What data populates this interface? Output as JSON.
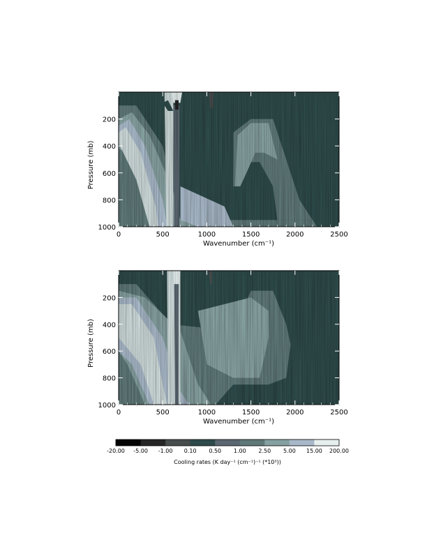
{
  "palette": {
    "c0": "#050505",
    "c1": "#262626",
    "c2": "#474c4c",
    "c3": "#2e4a4a",
    "c4": "#5a6670",
    "c5": "#5f7878",
    "c6": "#86a0a0",
    "c7": "#a8b8c8",
    "c8": "#cdd9d9",
    "c9": "#e6eeee"
  },
  "chart_data": [
    {
      "type": "heatmap",
      "title": "",
      "xlabel": "Wavenumber (cm⁻¹)",
      "ylabel": "Pressure (mb)",
      "xlim": [
        0,
        2500
      ],
      "ylim": [
        1000,
        0
      ],
      "xticks": [
        0,
        500,
        1000,
        1500,
        2000,
        2500
      ],
      "yticks": [
        200,
        400,
        600,
        800,
        1000
      ],
      "background_level": 3,
      "regions": [
        {
          "level": 5,
          "pts": [
            [
              0,
              100
            ],
            [
              200,
              100
            ],
            [
              500,
              400
            ],
            [
              700,
              950
            ],
            [
              2200,
              950
            ],
            [
              2250,
              1000
            ],
            [
              0,
              1000
            ]
          ]
        },
        {
          "level": 5,
          "pts": [
            [
              1300,
              300
            ],
            [
              1500,
              200
            ],
            [
              1750,
              200
            ],
            [
              1900,
              500
            ],
            [
              2050,
              800
            ],
            [
              2200,
              950
            ],
            [
              1800,
              950
            ],
            [
              1750,
              700
            ],
            [
              1600,
              520
            ],
            [
              1500,
              520
            ],
            [
              1350,
              700
            ],
            [
              1300,
              700
            ]
          ]
        },
        {
          "level": 6,
          "pts": [
            [
              1350,
              320
            ],
            [
              1500,
              230
            ],
            [
              1700,
              230
            ],
            [
              1800,
              500
            ],
            [
              1650,
              450
            ],
            [
              1550,
              450
            ],
            [
              1450,
              600
            ],
            [
              1380,
              700
            ],
            [
              1320,
              700
            ]
          ]
        },
        {
          "level": 6,
          "pts": [
            [
              0,
              200
            ],
            [
              150,
              150
            ],
            [
              350,
              320
            ],
            [
              600,
              700
            ],
            [
              700,
              950
            ],
            [
              1250,
              950
            ],
            [
              1250,
              1000
            ],
            [
              500,
              1000
            ],
            [
              300,
              700
            ],
            [
              100,
              450
            ],
            [
              0,
              420
            ]
          ]
        },
        {
          "level": 7,
          "pts": [
            [
              0,
              250
            ],
            [
              120,
              200
            ],
            [
              300,
              400
            ],
            [
              500,
              800
            ],
            [
              550,
              1000
            ],
            [
              400,
              1000
            ],
            [
              250,
              650
            ],
            [
              80,
              400
            ],
            [
              0,
              350
            ]
          ]
        },
        {
          "level": 7,
          "pts": [
            [
              700,
              700
            ],
            [
              1200,
              850
            ],
            [
              1300,
              1000
            ],
            [
              900,
              1000
            ],
            [
              700,
              950
            ]
          ]
        },
        {
          "level": 8,
          "pts": [
            [
              0,
              300
            ],
            [
              80,
              260
            ],
            [
              250,
              450
            ],
            [
              420,
              850
            ],
            [
              450,
              1000
            ],
            [
              350,
              1000
            ],
            [
              200,
              650
            ],
            [
              0,
              380
            ]
          ]
        },
        {
          "level": 8,
          "pts": [
            [
              520,
              0
            ],
            [
              620,
              0
            ],
            [
              620,
              1000
            ],
            [
              540,
              1000
            ]
          ]
        },
        {
          "level": 9,
          "pts": [
            [
              600,
              0
            ],
            [
              720,
              0
            ],
            [
              700,
              80
            ],
            [
              620,
              80
            ]
          ]
        },
        {
          "level": 4,
          "pts": [
            [
              620,
              100
            ],
            [
              690,
              100
            ],
            [
              690,
              1000
            ],
            [
              630,
              1000
            ]
          ]
        },
        {
          "level": 3,
          "pts": [
            [
              500,
              80
            ],
            [
              560,
              60
            ],
            [
              620,
              140
            ],
            [
              560,
              140
            ]
          ]
        },
        {
          "level": 3,
          "pts": [
            [
              700,
              80
            ],
            [
              800,
              60
            ],
            [
              820,
              140
            ],
            [
              720,
              140
            ]
          ]
        },
        {
          "level": 3,
          "pts": [
            [
              860,
              0
            ],
            [
              1030,
              0
            ],
            [
              1030,
              240
            ],
            [
              870,
              240
            ]
          ]
        },
        {
          "level": 0,
          "pts": [
            [
              1030,
              0
            ],
            [
              1060,
              0
            ],
            [
              1060,
              60
            ],
            [
              1045,
              60
            ]
          ]
        },
        {
          "level": 2,
          "pts": [
            [
              1020,
              0
            ],
            [
              1080,
              0
            ],
            [
              1070,
              120
            ],
            [
              1040,
              120
            ]
          ]
        },
        {
          "level": 1,
          "pts": [
            [
              640,
              60
            ],
            [
              680,
              60
            ],
            [
              680,
              130
            ],
            [
              640,
              130
            ]
          ]
        }
      ]
    },
    {
      "type": "heatmap",
      "title": "",
      "xlabel": "Wavenumber (cm⁻¹)",
      "ylabel": "Pressure (mb)",
      "xlim": [
        0,
        2500
      ],
      "ylim": [
        1000,
        0
      ],
      "xticks": [
        0,
        500,
        1000,
        1500,
        2000,
        2500
      ],
      "yticks": [
        200,
        400,
        600,
        800,
        1000
      ],
      "background_level": 3,
      "regions": [
        {
          "level": 5,
          "pts": [
            [
              0,
              100
            ],
            [
              200,
              100
            ],
            [
              600,
              400
            ],
            [
              1300,
              450
            ],
            [
              1500,
              150
            ],
            [
              1750,
              150
            ],
            [
              1900,
              400
            ],
            [
              1950,
              550
            ],
            [
              1900,
              800
            ],
            [
              1700,
              850
            ],
            [
              1300,
              850
            ],
            [
              1100,
              1000
            ],
            [
              0,
              1000
            ]
          ]
        },
        {
          "level": 6,
          "pts": [
            [
              0,
              150
            ],
            [
              300,
              200
            ],
            [
              700,
              450
            ],
            [
              900,
              850
            ],
            [
              1050,
              1000
            ],
            [
              300,
              1000
            ],
            [
              100,
              700
            ],
            [
              0,
              600
            ]
          ]
        },
        {
          "level": 6,
          "pts": [
            [
              900,
              300
            ],
            [
              1500,
              200
            ],
            [
              1700,
              300
            ],
            [
              1700,
              500
            ],
            [
              1600,
              800
            ],
            [
              1300,
              800
            ],
            [
              1000,
              700
            ]
          ]
        },
        {
          "level": 7,
          "pts": [
            [
              0,
              200
            ],
            [
              200,
              200
            ],
            [
              500,
              500
            ],
            [
              700,
              900
            ],
            [
              800,
              1000
            ],
            [
              350,
              1000
            ],
            [
              150,
              700
            ],
            [
              0,
              600
            ]
          ]
        },
        {
          "level": 8,
          "pts": [
            [
              0,
              250
            ],
            [
              150,
              250
            ],
            [
              400,
              500
            ],
            [
              500,
              850
            ],
            [
              550,
              1000
            ],
            [
              400,
              1000
            ],
            [
              250,
              700
            ],
            [
              0,
              500
            ]
          ]
        },
        {
          "level": 8,
          "pts": [
            [
              550,
              0
            ],
            [
              700,
              0
            ],
            [
              700,
              1000
            ],
            [
              560,
              1000
            ]
          ]
        },
        {
          "level": 9,
          "pts": [
            [
              620,
              0
            ],
            [
              700,
              0
            ],
            [
              690,
              100
            ],
            [
              630,
              100
            ]
          ]
        },
        {
          "level": 4,
          "pts": [
            [
              630,
              100
            ],
            [
              680,
              100
            ],
            [
              680,
              1000
            ],
            [
              640,
              1000
            ]
          ]
        },
        {
          "level": 3,
          "pts": [
            [
              700,
              0
            ],
            [
              950,
              0
            ],
            [
              950,
              100
            ],
            [
              720,
              100
            ]
          ]
        },
        {
          "level": 2,
          "pts": [
            [
              1020,
              0
            ],
            [
              1060,
              0
            ],
            [
              1060,
              100
            ],
            [
              1040,
              100
            ]
          ]
        }
      ]
    }
  ],
  "colorbar": {
    "ticks": [
      "-20.00",
      "-5.00",
      "-1.00",
      "0.10",
      "0.50",
      "1.00",
      "2.50",
      "5.00",
      "15.00",
      "200.00"
    ],
    "label": "Cooling rates (K day⁻¹ (cm⁻¹)⁻¹ (*10³))"
  }
}
